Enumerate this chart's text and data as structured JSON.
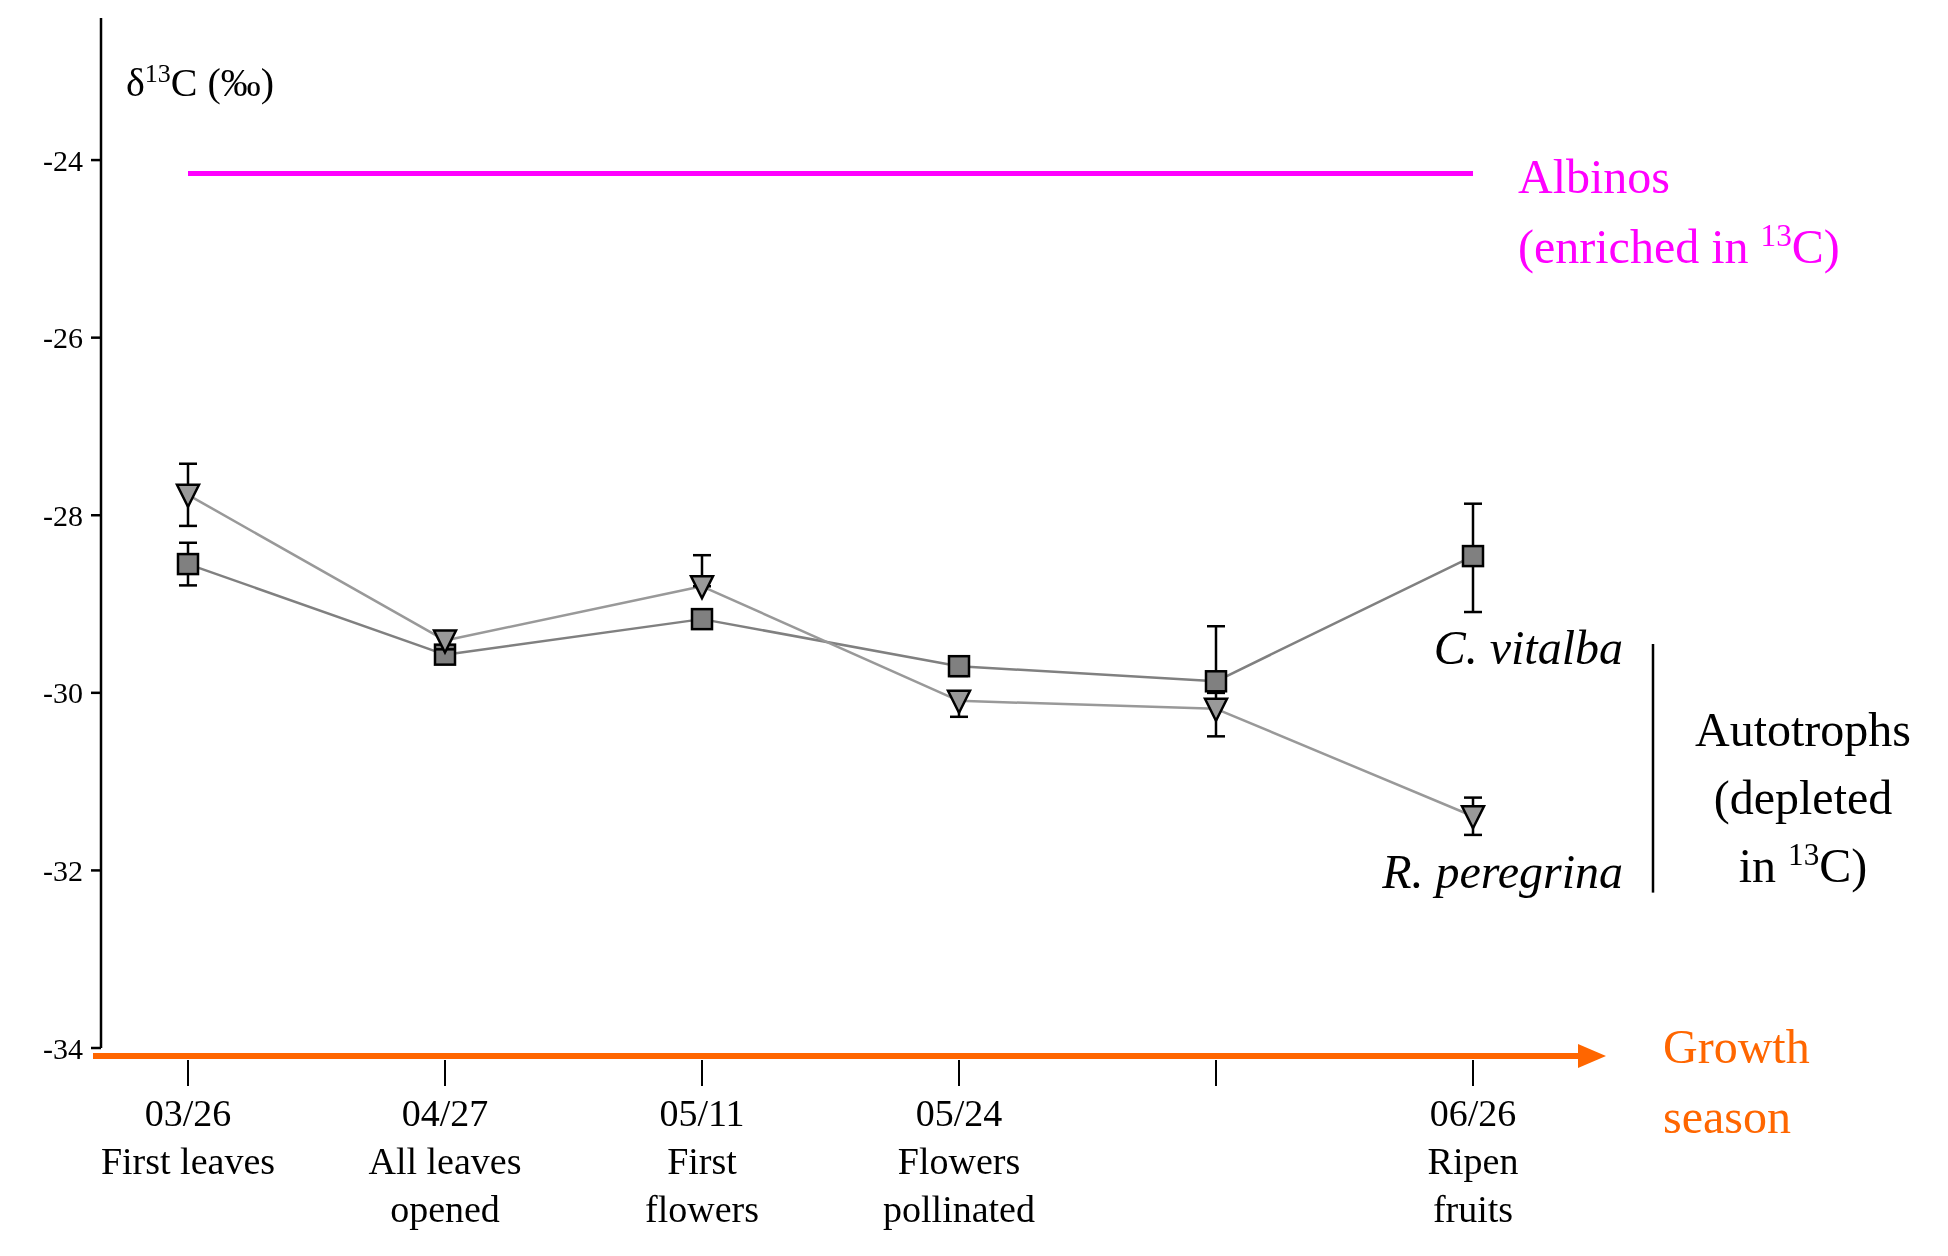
{
  "chart_data": {
    "type": "line",
    "ylabel": "δ$^{13}$C (‰)",
    "xlabel": "Growth season",
    "categories": [
      "03/26\nFirst leaves",
      "04/27\nAll leaves\nopened",
      "05/11\nFirst\nflowers",
      "05/24\nFlowers\npollinated",
      null,
      "06/26\nRipen\nfruits"
    ],
    "series": [
      {
        "name": "C. vitalba",
        "color": "#808080",
        "marker": "square",
        "values": [
          -28.55,
          -29.57,
          -29.17,
          -29.7,
          -29.87,
          -28.46
        ],
        "errors": [
          0.24,
          0.1,
          null,
          0.11,
          [
            -30.0,
            -29.25
          ],
          [
            -29.09,
            -27.87
          ]
        ]
      },
      {
        "name": "R. peregrina",
        "color": "#999999",
        "marker": "triangle",
        "values": [
          -27.77,
          -29.41,
          -28.8,
          -30.09,
          -30.18,
          -31.39
        ],
        "errors": [
          0.35,
          0.1,
          [
            -28.8,
            -28.45
          ],
          [
            -30.27,
            -30.0
          ],
          [
            -30.49,
            -30.0
          ],
          0.21
        ]
      }
    ],
    "ylim": [
      -34,
      -22.4
    ],
    "yticks": [
      -24,
      -26,
      -28,
      -30,
      -32,
      -34
    ],
    "grid": false,
    "ref_lines": [
      {
        "axis": "y",
        "value": -24.15,
        "label": "Albinos\n(enriched in $^{13}$C)",
        "color": "#ff00ff"
      }
    ],
    "annotations": [
      "Autotrophs\n(depleted\nin $^{13}$C)"
    ]
  }
}
